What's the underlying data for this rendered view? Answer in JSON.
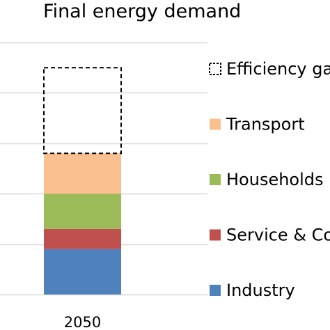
{
  "chart_data": {
    "type": "bar",
    "stacked": true,
    "title": "Final energy demand",
    "categories": [
      "2050"
    ],
    "series": [
      {
        "name": "Industry",
        "values": [
          9
        ],
        "color": "#4f81bd",
        "style": "solid"
      },
      {
        "name": "Service & Co",
        "values": [
          4
        ],
        "color": "#c0504d",
        "style": "solid"
      },
      {
        "name": "Households",
        "values": [
          7
        ],
        "color": "#9bbb59",
        "style": "solid"
      },
      {
        "name": "Transport",
        "values": [
          8
        ],
        "color": "#fac090",
        "style": "solid"
      },
      {
        "name": "Efficiency ga",
        "values": [
          17
        ],
        "color": "#000000",
        "style": "dashed-outline"
      }
    ],
    "ylim": [
      0,
      50
    ],
    "grid": true,
    "legend_position": "right"
  }
}
